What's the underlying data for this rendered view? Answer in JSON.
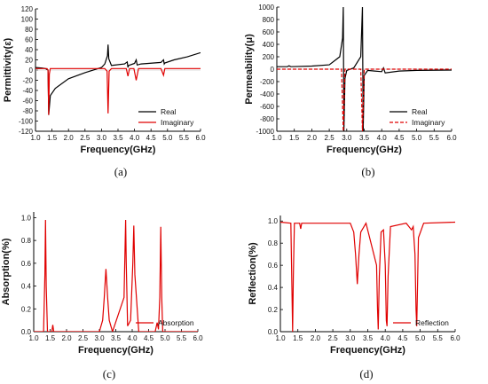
{
  "chart_data": [
    {
      "type": "line",
      "caption": "(a)",
      "xlabel": "Frequency(GHz)",
      "ylabel": "Permittivity(ε)",
      "xlim": [
        1.0,
        6.0
      ],
      "ylim": [
        -120,
        120
      ],
      "xticks": [
        "1.0",
        "1.5",
        "2.0",
        "2.5",
        "3.0",
        "3.5",
        "4.0",
        "4.5",
        "5.0",
        "5.5",
        "6.0"
      ],
      "yticks": [
        "-120",
        "-100",
        "-80",
        "-60",
        "-40",
        "-20",
        "0",
        "20",
        "40",
        "60",
        "80",
        "100",
        "120"
      ],
      "legend_position": "bottom-right",
      "series": [
        {
          "name": "Real",
          "color": "#000000",
          "dash": "solid",
          "x": [
            1.0,
            1.2,
            1.3,
            1.38,
            1.4,
            1.45,
            1.6,
            2.0,
            2.5,
            3.0,
            3.1,
            3.18,
            3.2,
            3.22,
            3.3,
            3.7,
            3.78,
            3.8,
            3.82,
            4.0,
            4.05,
            4.08,
            4.2,
            4.8,
            4.88,
            4.9,
            4.92,
            5.2,
            5.6,
            6.0
          ],
          "y": [
            5,
            4,
            3,
            0,
            -88,
            -50,
            -36,
            -17,
            -5,
            5,
            12,
            28,
            50,
            22,
            9,
            12,
            16,
            5,
            9,
            13,
            20,
            10,
            12,
            15,
            20,
            12,
            14,
            20,
            26,
            34
          ]
        },
        {
          "name": "Imaginary",
          "color": "#e00000",
          "dash": "solid",
          "x": [
            1.0,
            1.35,
            1.38,
            1.4,
            1.42,
            1.45,
            3.1,
            3.17,
            3.2,
            3.23,
            3.3,
            3.75,
            3.8,
            3.85,
            3.98,
            4.05,
            4.12,
            4.8,
            4.88,
            4.92,
            6.0
          ],
          "y": [
            3,
            3,
            0,
            -88,
            -8,
            3,
            3,
            -2,
            -85,
            -2,
            3,
            3,
            -12,
            3,
            3,
            -20,
            3,
            3,
            -10,
            3,
            3
          ]
        }
      ]
    },
    {
      "type": "line",
      "caption": "(b)",
      "xlabel": "Frequency(GHz)",
      "ylabel": "Permeability(μ)",
      "xlim": [
        1.0,
        6.0
      ],
      "ylim": [
        -1000,
        1000
      ],
      "xticks": [
        "1.0",
        "1.5",
        "2.0",
        "2.5",
        "3.0",
        "3.5",
        "4.0",
        "4.5",
        "5.0",
        "5.5",
        "6.0"
      ],
      "yticks": [
        "-1000",
        "-800",
        "-600",
        "-400",
        "-200",
        "0",
        "200",
        "400",
        "600",
        "800",
        "1000"
      ],
      "legend_position": "bottom-right",
      "series": [
        {
          "name": "Real",
          "color": "#000000",
          "dash": "solid",
          "x": [
            1.0,
            1.3,
            1.35,
            1.4,
            2.0,
            2.5,
            2.8,
            2.88,
            2.9,
            2.92,
            2.95,
            3.0,
            3.2,
            3.4,
            3.45,
            3.47,
            3.5,
            3.6,
            3.8,
            4.0,
            4.05,
            4.1,
            4.5,
            5.0,
            6.0
          ],
          "y": [
            40,
            40,
            55,
            40,
            50,
            70,
            200,
            500,
            1000,
            -1000,
            -150,
            -20,
            20,
            200,
            1000,
            -1000,
            -100,
            -20,
            -30,
            -40,
            20,
            -60,
            -30,
            -20,
            -15
          ]
        },
        {
          "name": "Imaginary",
          "color": "#e00000",
          "dash": "dashed",
          "x": [
            1.0,
            2.85,
            2.9,
            2.95,
            3.4,
            3.45,
            3.5,
            6.0
          ],
          "y": [
            0,
            0,
            -1000,
            0,
            0,
            -1000,
            0,
            0
          ]
        }
      ]
    },
    {
      "type": "line",
      "caption": "(c)",
      "xlabel": "Frequency(GHz)",
      "ylabel": "Absorption(%)",
      "xlim": [
        1.0,
        6.0
      ],
      "ylim": [
        0.0,
        1.05
      ],
      "xticks": [
        "1.0",
        "1.5",
        "2.0",
        "2.5",
        "3.0",
        "3.5",
        "4.0",
        "4.5",
        "5.0",
        "5.5",
        "6.0"
      ],
      "yticks": [
        "0.0",
        "0.2",
        "0.4",
        "0.6",
        "0.8",
        "1.0"
      ],
      "legend_position": "bottom-right",
      "series": [
        {
          "name": "Absorption",
          "color": "#e00000",
          "dash": "solid",
          "x": [
            1.0,
            1.3,
            1.34,
            1.36,
            1.38,
            1.42,
            1.55,
            1.58,
            1.61,
            3.0,
            3.1,
            3.15,
            3.2,
            3.25,
            3.3,
            3.4,
            3.75,
            3.8,
            3.82,
            3.86,
            3.95,
            4.02,
            4.05,
            4.08,
            4.2,
            4.7,
            4.76,
            4.8,
            4.84,
            4.87,
            4.9,
            4.93,
            6.0
          ],
          "y": [
            0.0,
            0.0,
            0.5,
            0.98,
            0.4,
            0.0,
            0.0,
            0.06,
            0.0,
            0.0,
            0.1,
            0.3,
            0.55,
            0.3,
            0.1,
            0.0,
            0.3,
            0.98,
            0.6,
            0.05,
            0.1,
            0.6,
            0.93,
            0.5,
            0.0,
            0.0,
            0.08,
            0.02,
            0.3,
            0.92,
            0.3,
            0.0,
            0.0
          ]
        }
      ]
    },
    {
      "type": "line",
      "caption": "(d)",
      "xlabel": "Frequency(GHz)",
      "ylabel": "Reflection(%)",
      "xlim": [
        1.0,
        6.0
      ],
      "ylim": [
        0.0,
        1.05
      ],
      "xticks": [
        "1.0",
        "1.5",
        "2.0",
        "2.5",
        "3.0",
        "3.5",
        "4.0",
        "4.5",
        "5.0",
        "5.5",
        "6.0"
      ],
      "yticks": [
        "0.0",
        "0.2",
        "0.4",
        "0.6",
        "0.8",
        "1.0"
      ],
      "legend_position": "bottom-right",
      "series": [
        {
          "name": "Reflection",
          "color": "#e00000",
          "dash": "solid",
          "x": [
            1.0,
            1.3,
            1.33,
            1.35,
            1.37,
            1.4,
            1.55,
            1.58,
            1.61,
            3.0,
            3.1,
            3.15,
            3.2,
            3.25,
            3.3,
            3.45,
            3.75,
            3.78,
            3.8,
            3.83,
            3.88,
            3.95,
            4.0,
            4.03,
            4.05,
            4.08,
            4.15,
            4.6,
            4.75,
            4.8,
            4.85,
            4.88,
            4.9,
            4.95,
            5.1,
            6.0
          ],
          "y": [
            0.99,
            0.98,
            0.4,
            0.0,
            0.5,
            0.98,
            0.98,
            0.93,
            0.98,
            0.98,
            0.9,
            0.7,
            0.43,
            0.7,
            0.9,
            0.98,
            0.6,
            0.2,
            0.02,
            0.5,
            0.9,
            0.92,
            0.6,
            0.1,
            0.05,
            0.5,
            0.95,
            0.98,
            0.92,
            0.95,
            0.7,
            0.2,
            0.05,
            0.85,
            0.98,
            0.99
          ]
        }
      ]
    }
  ]
}
